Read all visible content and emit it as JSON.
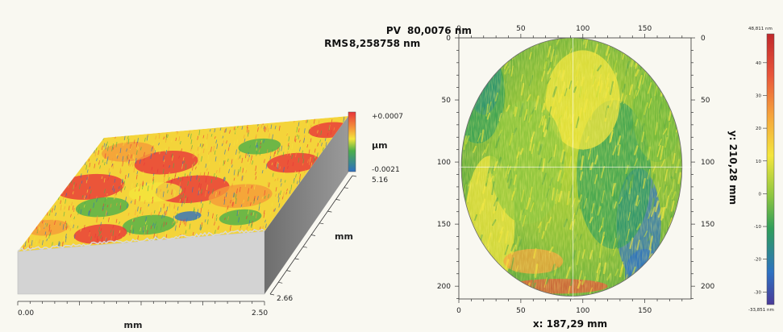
{
  "chart_data": [
    {
      "type": "surface-3d",
      "xlabel": "mm",
      "x_ticks": [
        "0.00",
        "2.50"
      ],
      "ylabel": "mm",
      "y_ticks": [
        "2.66"
      ],
      "colorbar": {
        "unit": "µm",
        "max_label": "+0.0007",
        "min_label": "-0.0021",
        "z_height_label": "5.16",
        "colors": [
          "#e8343a",
          "#f59a3a",
          "#f4e53c",
          "#4caf4a",
          "#2e6fc1"
        ]
      }
    },
    {
      "type": "heatmap",
      "pv_label": "PV",
      "pv_value": "80,0076 nm",
      "rms_label": "RMS",
      "rms_value": "8,258758 nm",
      "xlabel": "x: 187,29 mm",
      "ylabel": "y: 210,28 mm",
      "x_ticks": [
        0,
        50,
        100,
        150
      ],
      "y_ticks": [
        0,
        50,
        100,
        150,
        200
      ],
      "xlim": [
        0,
        187.29
      ],
      "ylim": [
        0,
        210.28
      ],
      "circle_center": [
        91,
        104
      ],
      "circle_radius_x": 89,
      "circle_radius_y": 104,
      "crosshair": [
        92,
        104
      ],
      "colorbar": {
        "max_label": "48,811 nm",
        "min_label": "-33,851 nm",
        "ticks": [
          40,
          30,
          20,
          10,
          0,
          -10,
          -20,
          -30
        ],
        "range": [
          -33.851,
          48.811
        ],
        "colors": [
          "#c0282b",
          "#e8543a",
          "#f6a33b",
          "#f4e63c",
          "#8cc63f",
          "#2f9e5a",
          "#2d72c2",
          "#4a3a98"
        ]
      }
    }
  ]
}
